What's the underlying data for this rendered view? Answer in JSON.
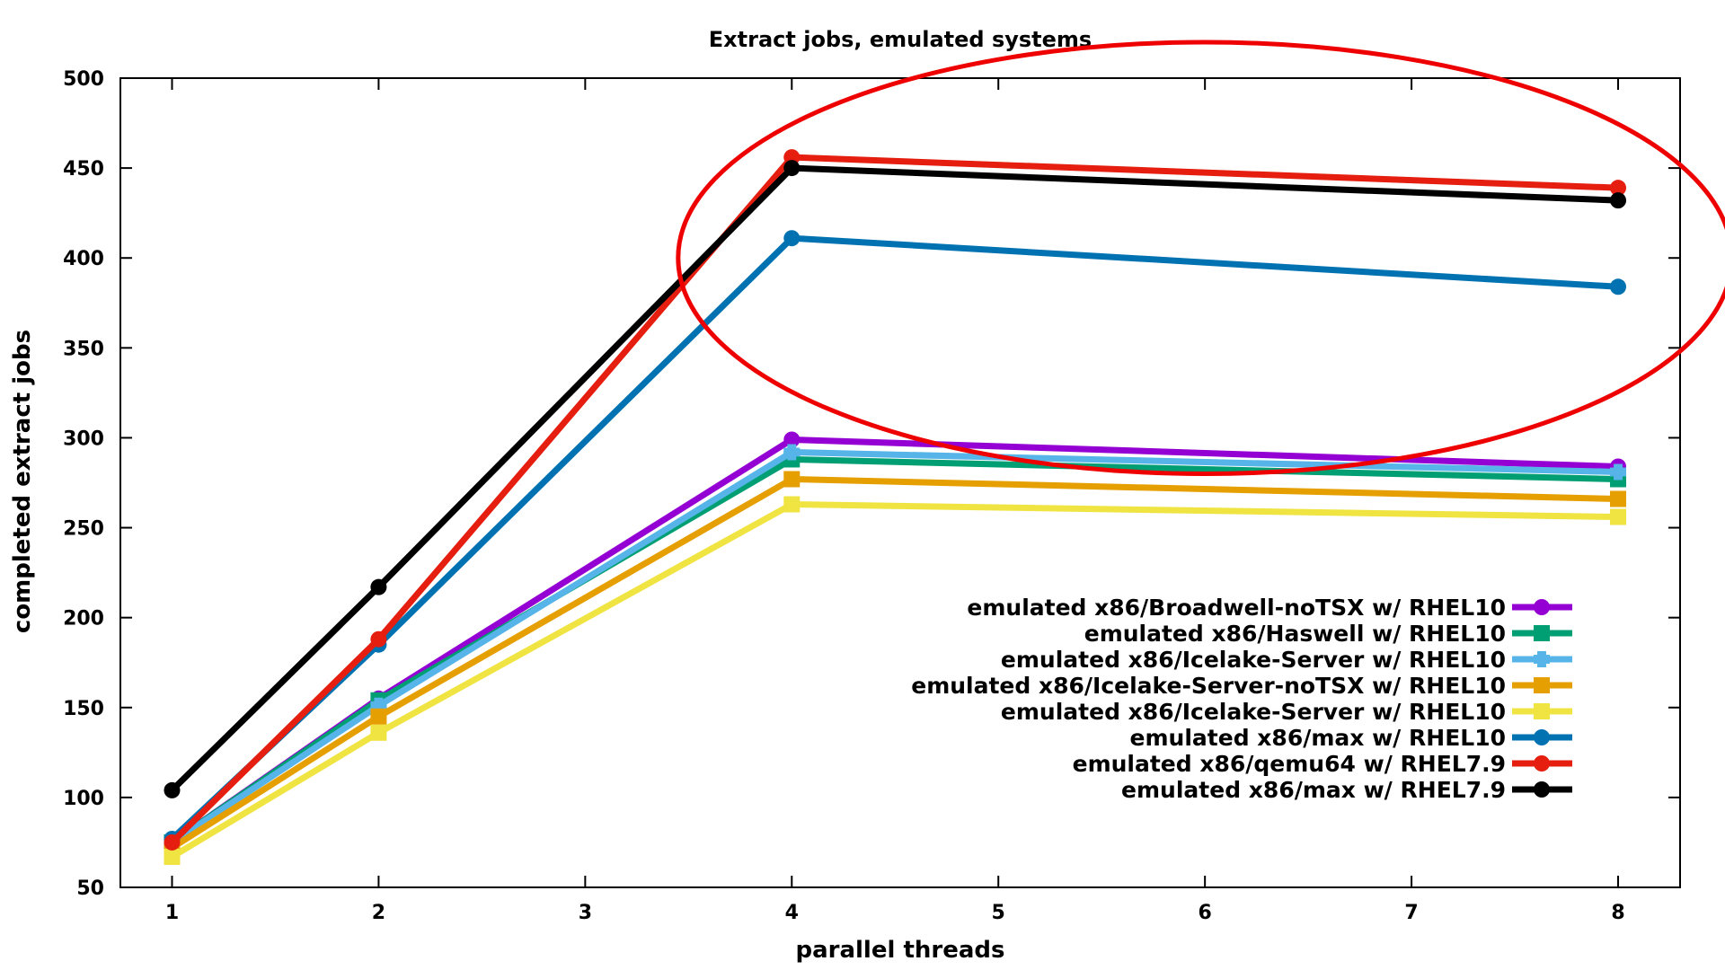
{
  "chart_data": {
    "type": "line",
    "title": "Extract jobs, emulated systems",
    "xlabel": "parallel threads",
    "ylabel": "completed extract jobs",
    "x": [
      1,
      2,
      4,
      8
    ],
    "x_ticks": [
      1,
      2,
      3,
      4,
      5,
      6,
      7,
      8
    ],
    "y_ticks": [
      50,
      100,
      150,
      200,
      250,
      300,
      350,
      400,
      450,
      500
    ],
    "xlim": [
      0.75,
      8.3
    ],
    "ylim": [
      50,
      500
    ],
    "grid": false,
    "legend_position": "bottom-right",
    "series": [
      {
        "name": "emulated x86/Broadwell-noTSX w/ RHEL10",
        "color": "#9400d3",
        "marker": "circle",
        "values": [
          75,
          155,
          299,
          284
        ]
      },
      {
        "name": "emulated x86/Haswell w/ RHEL10",
        "color": "#009e73",
        "marker": "square",
        "values": [
          75,
          154,
          288,
          277
        ]
      },
      {
        "name": "emulated x86/Icelake-Server w/ RHEL10",
        "color": "#56b4e9",
        "marker": "cross",
        "values": [
          75,
          151,
          292,
          281
        ]
      },
      {
        "name": "emulated x86/Icelake-Server-noTSX w/ RHEL10",
        "color": "#e69f00",
        "marker": "square",
        "values": [
          72,
          145,
          277,
          266
        ]
      },
      {
        "name": "emulated x86/Icelake-Server w/ RHEL10",
        "color": "#f0e442",
        "marker": "square",
        "values": [
          67,
          136,
          263,
          256
        ]
      },
      {
        "name": "emulated x86/max w/ RHEL10",
        "color": "#0072b2",
        "marker": "circle",
        "values": [
          77,
          185,
          411,
          384
        ]
      },
      {
        "name": "emulated x86/qemu64 w/ RHEL7.9",
        "color": "#e51e10",
        "marker": "circle",
        "values": [
          75,
          188,
          456,
          439
        ]
      },
      {
        "name": "emulated x86/max w/ RHEL7.9",
        "color": "#000000",
        "marker": "circle",
        "values": [
          104,
          217,
          450,
          432
        ]
      }
    ],
    "annotation": {
      "type": "ellipse",
      "color": "#ee0000",
      "center_x": 6.0,
      "center_y": 400,
      "radius_x": 2.55,
      "radius_y": 120
    }
  }
}
